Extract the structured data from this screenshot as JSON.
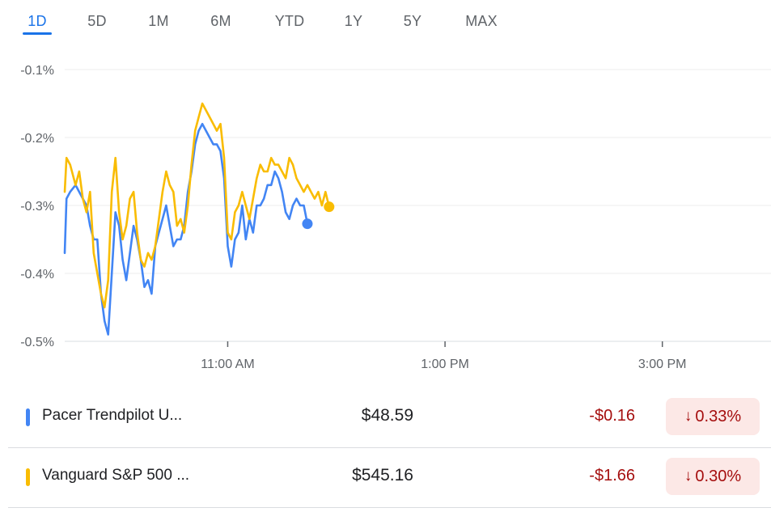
{
  "tabs": [
    {
      "label": "1D",
      "active": true
    },
    {
      "label": "5D",
      "active": false
    },
    {
      "label": "1M",
      "active": false
    },
    {
      "label": "6M",
      "active": false
    },
    {
      "label": "YTD",
      "active": false
    },
    {
      "label": "1Y",
      "active": false
    },
    {
      "label": "5Y",
      "active": false
    },
    {
      "label": "MAX",
      "active": false
    }
  ],
  "colors": {
    "accent": "#1a73e8",
    "series1": "#4285f4",
    "series2": "#f9bc02",
    "negative": "#a50e0e",
    "negative_bg": "#fce8e6"
  },
  "chart_data": {
    "type": "line",
    "title": "",
    "xlabel": "",
    "ylabel": "",
    "x_unit": "time of day",
    "xlim": [
      "09:30",
      "16:00"
    ],
    "xticks": [
      "11:00 AM",
      "1:00 PM",
      "3:00 PM"
    ],
    "ylim": [
      -0.5,
      -0.1
    ],
    "yticks": [
      "-0.1%",
      "-0.2%",
      "-0.3%",
      "-0.4%",
      "-0.5%"
    ],
    "ytick_values": [
      -0.1,
      -0.2,
      -0.3,
      -0.4,
      -0.5
    ],
    "grid": true,
    "legend_position": "bottom",
    "series": [
      {
        "name": "Pacer Trendpilot U...",
        "color": "#4285f4",
        "x": [
          "09:30",
          "09:31",
          "09:33",
          "09:36",
          "09:38",
          "09:40",
          "09:42",
          "09:44",
          "09:46",
          "09:48",
          "09:50",
          "09:52",
          "09:54",
          "09:56",
          "09:58",
          "10:00",
          "10:02",
          "10:04",
          "10:06",
          "10:08",
          "10:10",
          "10:12",
          "10:14",
          "10:16",
          "10:18",
          "10:20",
          "10:22",
          "10:24",
          "10:26",
          "10:28",
          "10:30",
          "10:32",
          "10:34",
          "10:36",
          "10:38",
          "10:40",
          "10:42",
          "10:44",
          "10:46",
          "10:48",
          "10:50",
          "10:52",
          "10:54",
          "10:56",
          "10:58",
          "11:00",
          "11:02",
          "11:04",
          "11:06",
          "11:08",
          "11:10",
          "11:12",
          "11:14",
          "11:16",
          "11:18",
          "11:20",
          "11:22",
          "11:24",
          "11:26",
          "11:28",
          "11:30",
          "11:32",
          "11:34",
          "11:36",
          "11:38",
          "11:40",
          "11:42",
          "11:44"
        ],
        "values": [
          -0.37,
          -0.29,
          -0.28,
          -0.27,
          -0.28,
          -0.29,
          -0.3,
          -0.33,
          -0.35,
          -0.35,
          -0.43,
          -0.47,
          -0.49,
          -0.4,
          -0.31,
          -0.33,
          -0.38,
          -0.41,
          -0.37,
          -0.33,
          -0.35,
          -0.38,
          -0.42,
          -0.41,
          -0.43,
          -0.36,
          -0.34,
          -0.32,
          -0.3,
          -0.33,
          -0.36,
          -0.35,
          -0.35,
          -0.33,
          -0.28,
          -0.25,
          -0.21,
          -0.19,
          -0.18,
          -0.19,
          -0.2,
          -0.21,
          -0.21,
          -0.22,
          -0.26,
          -0.36,
          -0.39,
          -0.35,
          -0.34,
          -0.3,
          -0.35,
          -0.32,
          -0.34,
          -0.3,
          -0.3,
          -0.29,
          -0.27,
          -0.27,
          -0.25,
          -0.26,
          -0.28,
          -0.31,
          -0.32,
          -0.3,
          -0.29,
          -0.3,
          -0.3,
          -0.327
        ]
      },
      {
        "name": "Vanguard S&P 500 ...",
        "color": "#f9bc02",
        "x": [
          "09:30",
          "09:31",
          "09:33",
          "09:36",
          "09:38",
          "09:40",
          "09:42",
          "09:44",
          "09:46",
          "09:48",
          "09:50",
          "09:52",
          "09:54",
          "09:56",
          "09:58",
          "10:00",
          "10:02",
          "10:04",
          "10:06",
          "10:08",
          "10:10",
          "10:12",
          "10:14",
          "10:16",
          "10:18",
          "10:20",
          "10:22",
          "10:24",
          "10:26",
          "10:28",
          "10:30",
          "10:32",
          "10:34",
          "10:36",
          "10:38",
          "10:40",
          "10:42",
          "10:44",
          "10:46",
          "10:48",
          "10:50",
          "10:52",
          "10:54",
          "10:56",
          "10:58",
          "11:00",
          "11:02",
          "11:04",
          "11:06",
          "11:08",
          "11:10",
          "11:12",
          "11:14",
          "11:16",
          "11:18",
          "11:20",
          "11:22",
          "11:24",
          "11:26",
          "11:28",
          "11:30",
          "11:32",
          "11:34",
          "11:36",
          "11:38",
          "11:40",
          "11:42",
          "11:44",
          "11:46",
          "11:48",
          "11:50",
          "11:52",
          "11:54",
          "11:56"
        ],
        "values": [
          -0.28,
          -0.23,
          -0.24,
          -0.27,
          -0.25,
          -0.29,
          -0.31,
          -0.28,
          -0.37,
          -0.4,
          -0.43,
          -0.45,
          -0.41,
          -0.28,
          -0.23,
          -0.31,
          -0.35,
          -0.33,
          -0.29,
          -0.28,
          -0.34,
          -0.38,
          -0.39,
          -0.37,
          -0.38,
          -0.36,
          -0.32,
          -0.28,
          -0.25,
          -0.27,
          -0.28,
          -0.33,
          -0.32,
          -0.34,
          -0.3,
          -0.24,
          -0.19,
          -0.17,
          -0.15,
          -0.16,
          -0.17,
          -0.18,
          -0.19,
          -0.18,
          -0.23,
          -0.34,
          -0.35,
          -0.31,
          -0.3,
          -0.28,
          -0.3,
          -0.32,
          -0.29,
          -0.26,
          -0.24,
          -0.25,
          -0.25,
          -0.23,
          -0.24,
          -0.24,
          -0.25,
          -0.26,
          -0.23,
          -0.24,
          -0.26,
          -0.27,
          -0.28,
          -0.27,
          -0.28,
          -0.29,
          -0.28,
          -0.3,
          -0.28,
          -0.302
        ]
      }
    ]
  },
  "legend": [
    {
      "name": "Pacer Trendpilot U...",
      "price": "$48.59",
      "change": "-$0.16",
      "percent": "0.33%",
      "direction": "down",
      "color": "#4285f4"
    },
    {
      "name": "Vanguard S&P 500 ...",
      "price": "$545.16",
      "change": "-$1.66",
      "percent": "0.30%",
      "direction": "down",
      "color": "#f9bc02"
    }
  ]
}
